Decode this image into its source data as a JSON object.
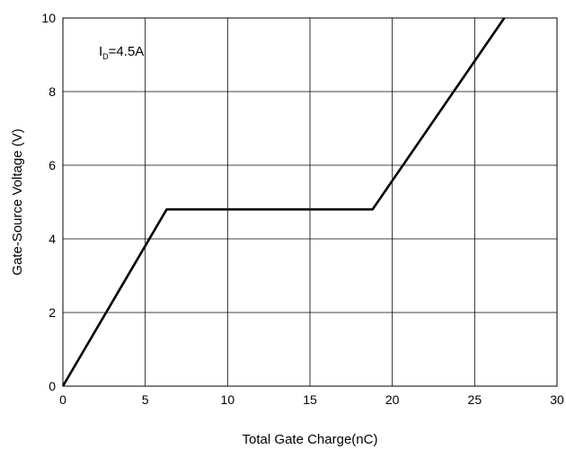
{
  "chart_data": {
    "type": "line",
    "title": "",
    "xlabel": "Total Gate Charge(nC)",
    "ylabel": "Gate-Source Voltage (V)",
    "xlim": [
      0,
      30
    ],
    "ylim": [
      0,
      10
    ],
    "xticks": [
      "0",
      "5",
      "10",
      "15",
      "20",
      "25",
      "30"
    ],
    "yticks": [
      "0",
      "2",
      "4",
      "6",
      "8",
      "10"
    ],
    "grid": true,
    "annotation": {
      "main": "I",
      "sub": "D",
      "rest": "=4.5A"
    },
    "series": [
      {
        "x": [
          0,
          6.3,
          18.8,
          26.8
        ],
        "y": [
          0,
          4.8,
          4.8,
          10
        ],
        "color": "#000000"
      }
    ]
  }
}
